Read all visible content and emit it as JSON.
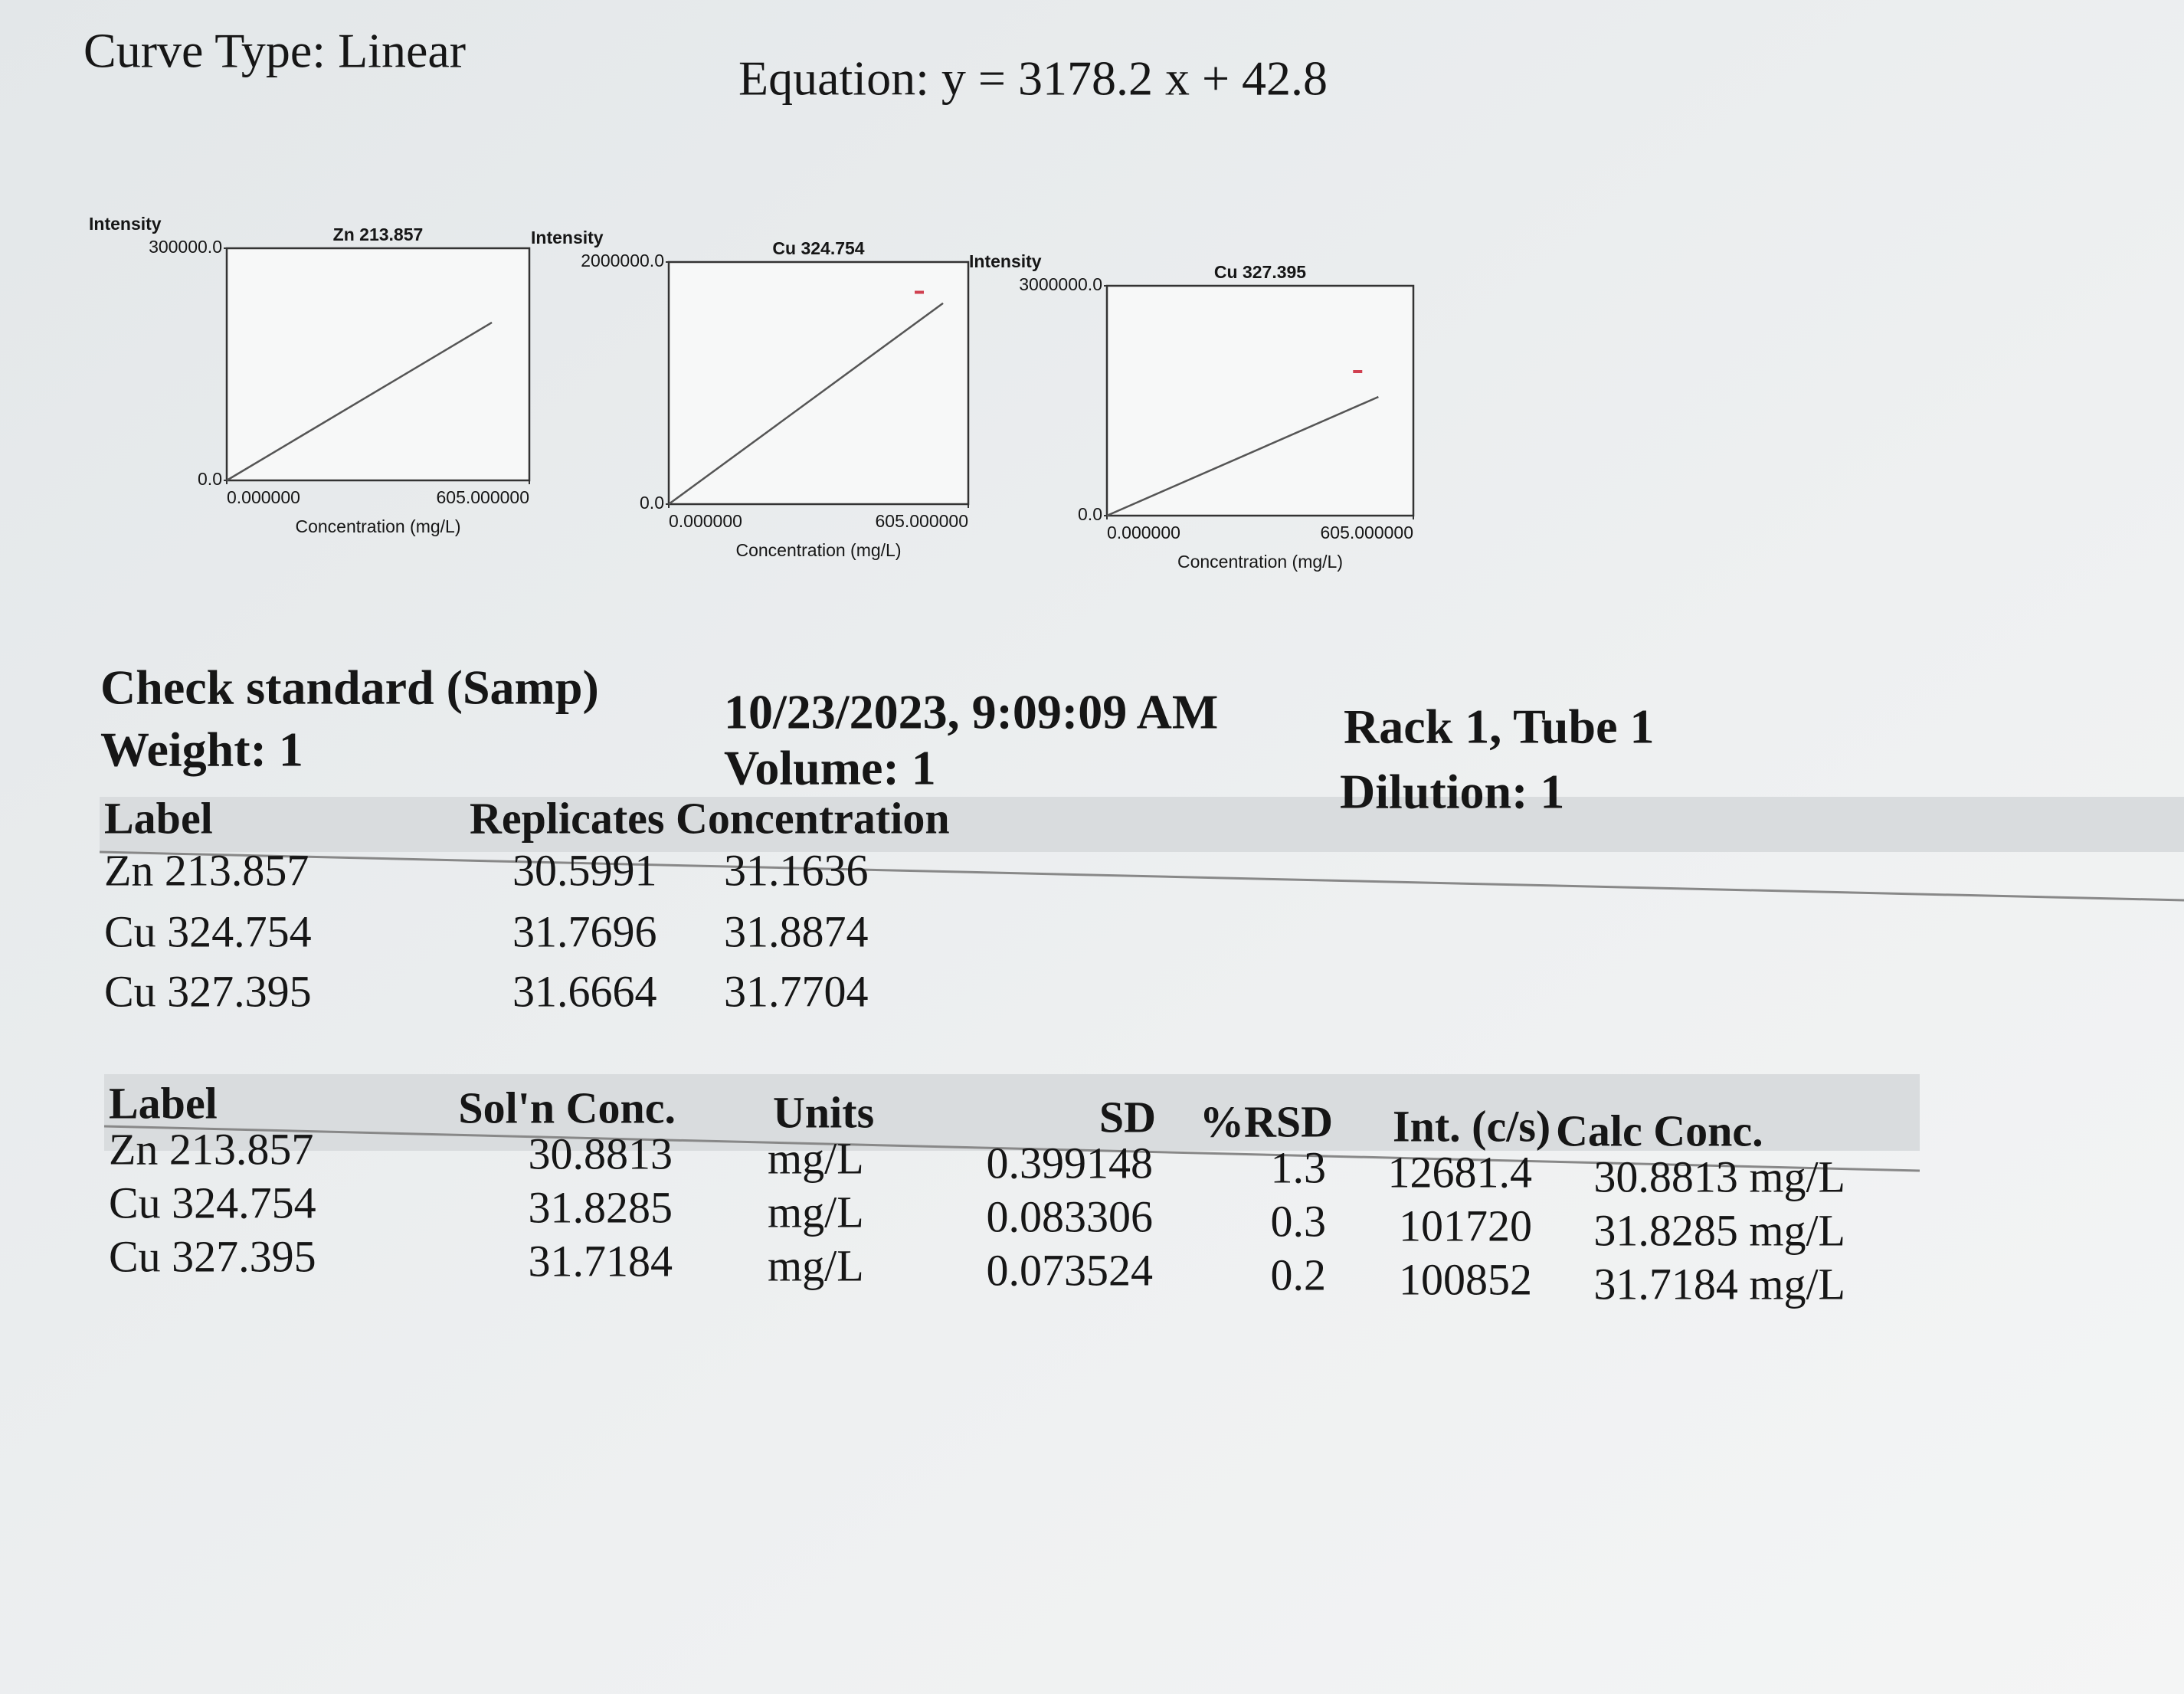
{
  "header": {
    "curve_type": "Curve Type: Linear",
    "equation": "Equation: y = 3178.2 x + 42.8"
  },
  "chart_data": [
    {
      "type": "line",
      "title": "Zn 213.857",
      "y_label": "Intensity",
      "x_label": "Concentration (mg/L)",
      "xlim": [
        0,
        605
      ],
      "ylim": [
        0,
        300000
      ],
      "xticks": [
        {
          "value": 0,
          "label": "0.000000"
        },
        {
          "value": 605,
          "label": "605.000000"
        }
      ],
      "yticks": [
        {
          "value": 0,
          "label": "0.0"
        },
        {
          "value": 300000,
          "label": "300000.0"
        }
      ],
      "series": [
        {
          "color": "#555555",
          "x": [
            0,
            530
          ],
          "values": [
            0,
            204000
          ]
        }
      ]
    },
    {
      "type": "line",
      "title": "Cu 324.754",
      "y_label": "Intensity",
      "x_label": "Concentration (mg/L)",
      "xlim": [
        0,
        605
      ],
      "ylim": [
        0,
        2000000
      ],
      "xticks": [
        {
          "value": 0,
          "label": "0.000000"
        },
        {
          "value": 605,
          "label": "605.000000"
        }
      ],
      "yticks": [
        {
          "value": 0,
          "label": "0.0"
        },
        {
          "value": 2000000,
          "label": "2000000.0"
        }
      ],
      "series": [
        {
          "color": "#555555",
          "x": [
            0,
            554
          ],
          "values": [
            0,
            1660000
          ]
        },
        {
          "color": "#d04050",
          "marker": "dash",
          "x": [
            506
          ],
          "values": [
            1750000
          ]
        }
      ]
    },
    {
      "type": "line",
      "title": "Cu 327.395",
      "y_label": "Intensity",
      "x_label": "Concentration (mg/L)",
      "xlim": [
        0,
        605
      ],
      "ylim": [
        0,
        3000000
      ],
      "xticks": [
        {
          "value": 0,
          "label": "0.000000"
        },
        {
          "value": 605,
          "label": "605.000000"
        }
      ],
      "yticks": [
        {
          "value": 0,
          "label": "0.0"
        },
        {
          "value": 3000000,
          "label": "3000000.0"
        }
      ],
      "series": [
        {
          "color": "#555555",
          "x": [
            0,
            536
          ],
          "values": [
            0,
            1550000
          ]
        },
        {
          "color": "#d04050",
          "marker": "dash",
          "x": [
            495
          ],
          "values": [
            1880000
          ]
        }
      ]
    }
  ],
  "sample": {
    "name": "Check standard (Samp)",
    "weight": "Weight: 1",
    "datetime": "10/23/2023, 9:09:09 AM",
    "volume": "Volume: 1",
    "location": "Rack 1, Tube 1",
    "dilution": "Dilution: 1"
  },
  "replicates_table": {
    "columns": [
      "Label",
      "Replicates Concentration"
    ],
    "rows": [
      [
        "Zn 213.857",
        "30.5991",
        "31.1636"
      ],
      [
        "Cu 324.754",
        "31.7696",
        "31.8874"
      ],
      [
        "Cu 327.395",
        "31.6664",
        "31.7704"
      ]
    ]
  },
  "results_table": {
    "columns": [
      "Label",
      "Sol'n Conc.",
      "Units",
      "SD",
      "%RSD",
      "Int. (c/s)",
      "Calc Conc."
    ],
    "rows": [
      [
        "Zn 213.857",
        "30.8813",
        "mg/L",
        "0.399148",
        "1.3",
        "12681.4",
        "30.8813 mg/L"
      ],
      [
        "Cu 324.754",
        "31.8285",
        "mg/L",
        "0.083306",
        "0.3",
        "101720",
        "31.8285 mg/L"
      ],
      [
        "Cu 327.395",
        "31.7184",
        "mg/L",
        "0.073524",
        "0.2",
        "100852",
        "31.7184 mg/L"
      ]
    ]
  }
}
